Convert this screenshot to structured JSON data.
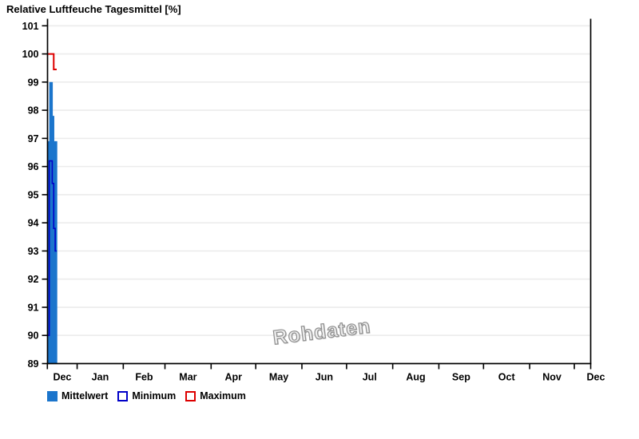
{
  "title": "Relative Luftfeuche Tagesmittel [%]",
  "watermark": "Rohdaten",
  "legend": {
    "items": [
      {
        "label": "Mittelwert",
        "style": "filled",
        "color": "#1b75cc"
      },
      {
        "label": "Minimum",
        "style": "outline",
        "color": "#0000c8"
      },
      {
        "label": "Maximum",
        "style": "outline",
        "color": "#dd0000"
      }
    ]
  },
  "chart_data": {
    "type": "bar",
    "title": "Relative Luftfeuche Tagesmittel [%]",
    "xlabel": "",
    "ylabel": "",
    "ylim": [
      89,
      101
    ],
    "y_ticks": [
      89,
      90,
      91,
      92,
      93,
      94,
      95,
      96,
      97,
      98,
      99,
      100,
      101
    ],
    "x_tick_labels": [
      "Dec",
      "Jan",
      "Feb",
      "Mar",
      "Apr",
      "May",
      "Jun",
      "Jul",
      "Aug",
      "Sep",
      "Oct",
      "Nov",
      "Dec"
    ],
    "grid": "horizontal-only",
    "legend_position": "bottom-left",
    "watermark": "Rohdaten",
    "data_days": 6,
    "series": [
      {
        "name": "Mittelwert",
        "render": "bar",
        "color": "#1b75cc",
        "day_values": [
          96.9,
          99.0,
          99.0,
          97.8,
          96.9,
          96.9
        ]
      },
      {
        "name": "Minimum",
        "render": "step-line",
        "color": "#0000c8",
        "day_values": [
          90.0,
          96.2,
          96.2,
          95.4,
          93.8,
          93.0
        ]
      },
      {
        "name": "Maximum",
        "render": "step-line",
        "color": "#dd0000",
        "day_values": [
          100.0,
          100.0,
          100.0,
          100.0,
          99.45,
          99.45
        ]
      }
    ]
  }
}
